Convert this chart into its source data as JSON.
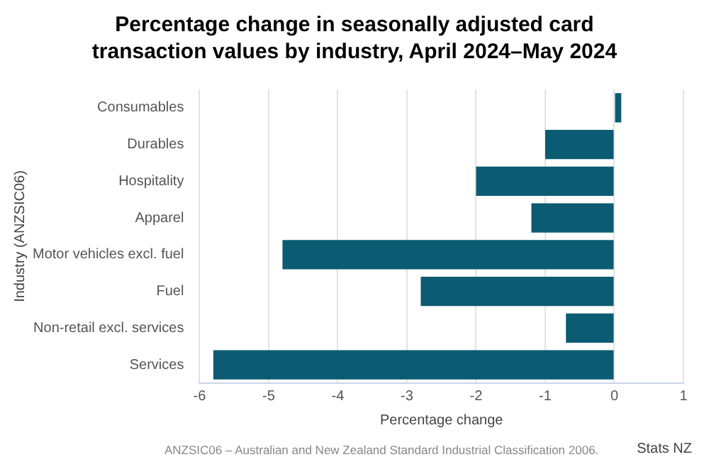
{
  "chart_data": {
    "type": "bar",
    "orientation": "horizontal",
    "title": "Percentage change in seasonally adjusted card transaction values by industry, April 2024–May 2024",
    "xlabel": "Percentage change",
    "ylabel": "Industry (ANZSIC06)",
    "categories": [
      "Consumables",
      "Durables",
      "Hospitality",
      "Apparel",
      "Motor vehicles excl. fuel",
      "Fuel",
      "Non-retail excl. services",
      "Services"
    ],
    "values": [
      0.1,
      -1.0,
      -2.0,
      -1.2,
      -4.8,
      -2.8,
      -0.7,
      -5.8
    ],
    "color": "#0b5b72",
    "xlim": [
      -6,
      1
    ],
    "xticks": [
      -6,
      -5,
      -4,
      -3,
      -2,
      -1,
      0,
      1
    ],
    "grid": "x",
    "legend": false,
    "annotations": [
      "ANZSIC06 – Australian and New Zealand Standard Industrial Classification 2006.",
      "Stats NZ"
    ]
  }
}
